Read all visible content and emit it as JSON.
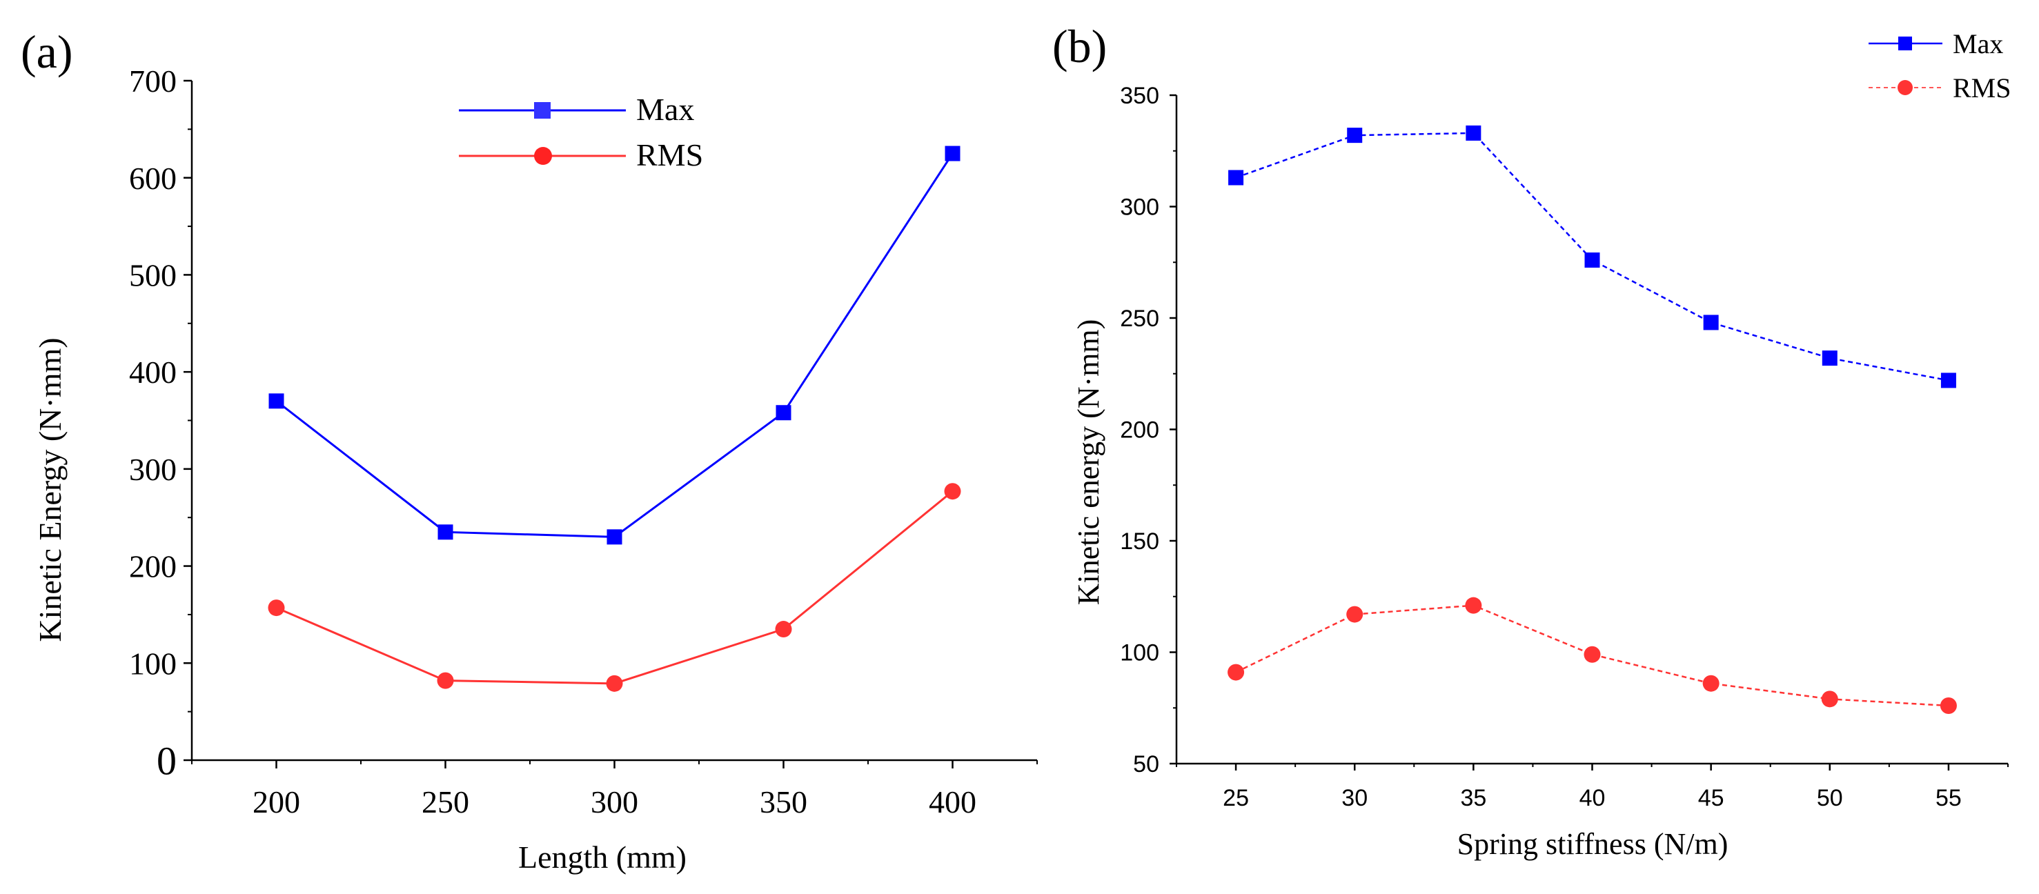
{
  "chart_data": [
    {
      "type": "line",
      "panel_label": "(a)",
      "xlabel": "Length (mm)",
      "ylabel": "Kinetic Energy (N·mm)",
      "xlim": [
        175,
        425
      ],
      "ylim": [
        0,
        700
      ],
      "x": [
        200,
        250,
        300,
        350,
        400
      ],
      "xticks": [
        "200",
        "250",
        "300",
        "350",
        "400"
      ],
      "yticks": [
        "0",
        "100",
        "200",
        "300",
        "400",
        "500",
        "600",
        "700"
      ],
      "legend_position": "top-center",
      "grid": false,
      "series": [
        {
          "name": "Max",
          "color": "#0000ff",
          "marker": "square",
          "line": "solid",
          "values": [
            370,
            235,
            230,
            358,
            625
          ]
        },
        {
          "name": "RMS",
          "color": "#ff3333",
          "marker": "circle",
          "line": "solid",
          "values": [
            157,
            82,
            79,
            135,
            277
          ]
        }
      ]
    },
    {
      "type": "line",
      "panel_label": "(b)",
      "xlabel": "Spring stiffness (N/m)",
      "ylabel": "Kinetic energy (N·mm)",
      "xlim": [
        22.5,
        57.5
      ],
      "ylim": [
        50,
        350
      ],
      "x": [
        25,
        30,
        35,
        40,
        45,
        50,
        55
      ],
      "xticks": [
        "25",
        "30",
        "35",
        "40",
        "45",
        "50",
        "55"
      ],
      "yticks": [
        "50",
        "100",
        "150",
        "200",
        "250",
        "300",
        "350"
      ],
      "legend_position": "top-right",
      "grid": false,
      "series": [
        {
          "name": "Max",
          "color": "#0000ff",
          "marker": "square",
          "line": "dashed",
          "values": [
            313,
            332,
            333,
            276,
            248,
            232,
            222
          ]
        },
        {
          "name": "RMS",
          "color": "#ff3333",
          "marker": "circle",
          "line": "dashed",
          "values": [
            91,
            117,
            121,
            99,
            86,
            79,
            76
          ]
        }
      ]
    }
  ]
}
